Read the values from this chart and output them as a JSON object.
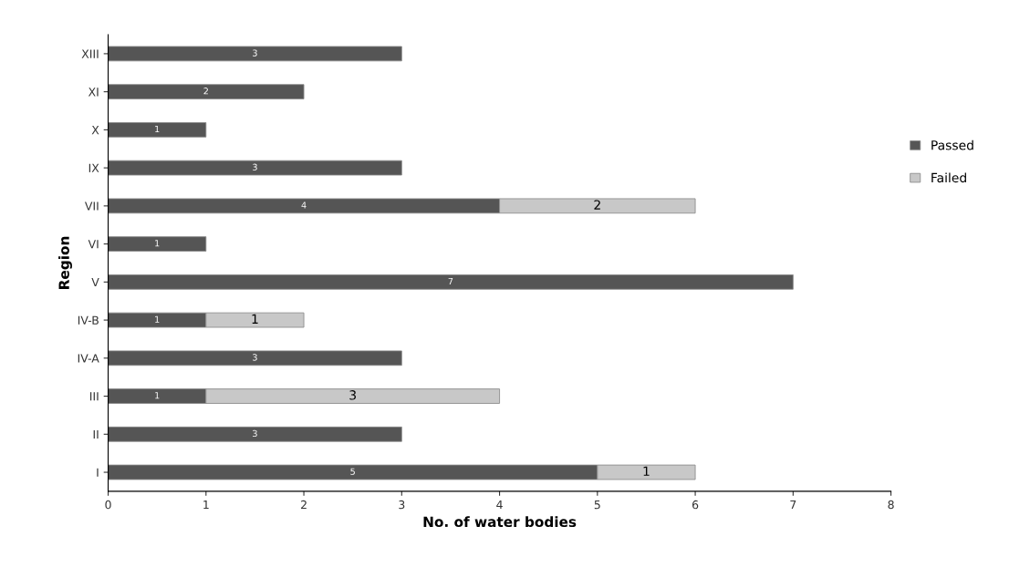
{
  "chart_data": {
    "type": "bar",
    "orientation": "horizontal",
    "stacked": true,
    "xlabel": "No. of water bodies",
    "ylabel": "Region",
    "categories": [
      "XIII",
      "XI",
      "X",
      "IX",
      "VII",
      "VI",
      "V",
      "IV-B",
      "IV-A",
      "III",
      "II",
      "I"
    ],
    "series": [
      {
        "name": "Passed",
        "color": "#555555",
        "values": [
          3,
          2,
          1,
          3,
          4,
          1,
          7,
          1,
          3,
          1,
          3,
          5
        ]
      },
      {
        "name": "Failed",
        "color": "#c8c8c8",
        "values": [
          null,
          null,
          null,
          null,
          2,
          null,
          null,
          1,
          null,
          3,
          null,
          1
        ]
      }
    ],
    "xlim": [
      0,
      8
    ],
    "xticks": [
      0,
      1,
      2,
      3,
      4,
      5,
      6,
      7,
      8
    ],
    "data_labels": true,
    "legend": "right",
    "grid": false
  }
}
